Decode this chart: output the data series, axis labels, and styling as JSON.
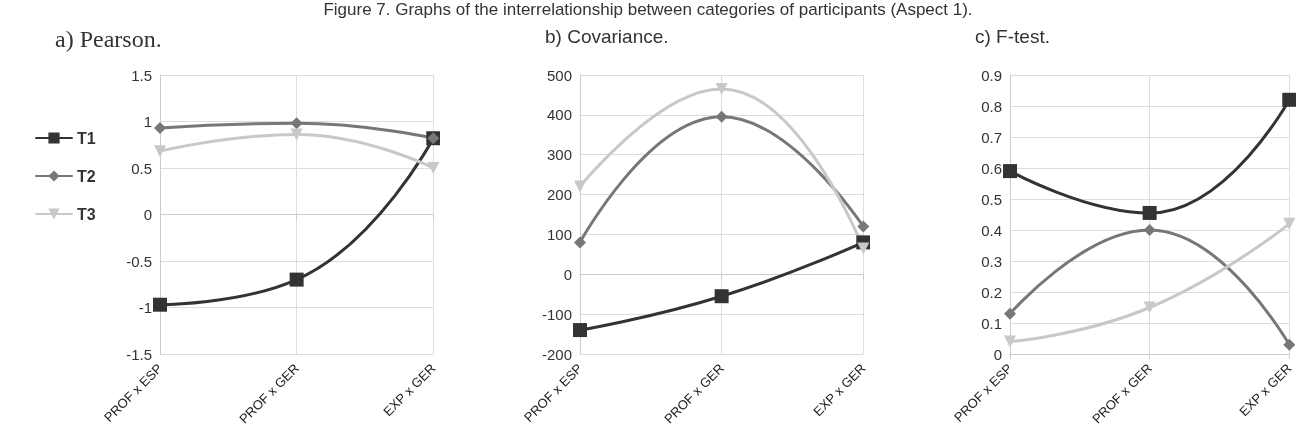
{
  "chart_data": [
    {
      "type": "line",
      "title": "a) Pearson.",
      "annotations": [
        "Figure 7. Graphs of the interrelationship between categories of participants (Aspect 1)."
      ],
      "categories": [
        "PROF x ESP",
        "PROF x GER",
        "EXP x GER"
      ],
      "series": [
        {
          "name": "T1",
          "color": "#333333",
          "marker": "square",
          "values": [
            -0.97,
            -0.7,
            0.82
          ]
        },
        {
          "name": "T2",
          "color": "#777777",
          "marker": "diamond",
          "values": [
            0.93,
            0.98,
            0.82
          ]
        },
        {
          "name": "T3",
          "color": "#c8c8c8",
          "marker": "triangle",
          "values": [
            0.68,
            0.86,
            0.5
          ]
        }
      ],
      "ylim": [
        -1.5,
        1.5
      ],
      "yticks": [
        -1.5,
        -1,
        -0.5,
        0,
        0.5,
        1,
        1.5
      ],
      "grid": "y",
      "legend": "left"
    },
    {
      "type": "line",
      "title": "b) Covariance.",
      "categories": [
        "PROF x ESP",
        "PROF x GER",
        "EXP x GER"
      ],
      "series": [
        {
          "color": "#333333",
          "marker": "square",
          "values": [
            -140,
            -55,
            80
          ]
        },
        {
          "color": "#777777",
          "marker": "diamond",
          "values": [
            80,
            395,
            120
          ]
        },
        {
          "color": "#c8c8c8",
          "marker": "triangle",
          "values": [
            220,
            465,
            65
          ]
        }
      ],
      "ylim": [
        -200,
        500
      ],
      "yticks": [
        -200,
        -100,
        0,
        100,
        200,
        300,
        400,
        500
      ],
      "grid": "y"
    },
    {
      "type": "line",
      "title": "c) F-test.",
      "categories": [
        "PROF x ESP",
        "PROF x GER",
        "EXP x GER"
      ],
      "series": [
        {
          "color": "#333333",
          "marker": "square",
          "values": [
            0.59,
            0.455,
            0.82
          ]
        },
        {
          "color": "#777777",
          "marker": "diamond",
          "values": [
            0.13,
            0.4,
            0.03
          ]
        },
        {
          "color": "#c8c8c8",
          "marker": "triangle",
          "values": [
            0.04,
            0.15,
            0.42
          ]
        }
      ],
      "ylim": [
        0,
        0.9
      ],
      "yticks": [
        0,
        0.1,
        0.2,
        0.3,
        0.4,
        0.5,
        0.6,
        0.7,
        0.8,
        0.9
      ],
      "grid": "y"
    }
  ]
}
